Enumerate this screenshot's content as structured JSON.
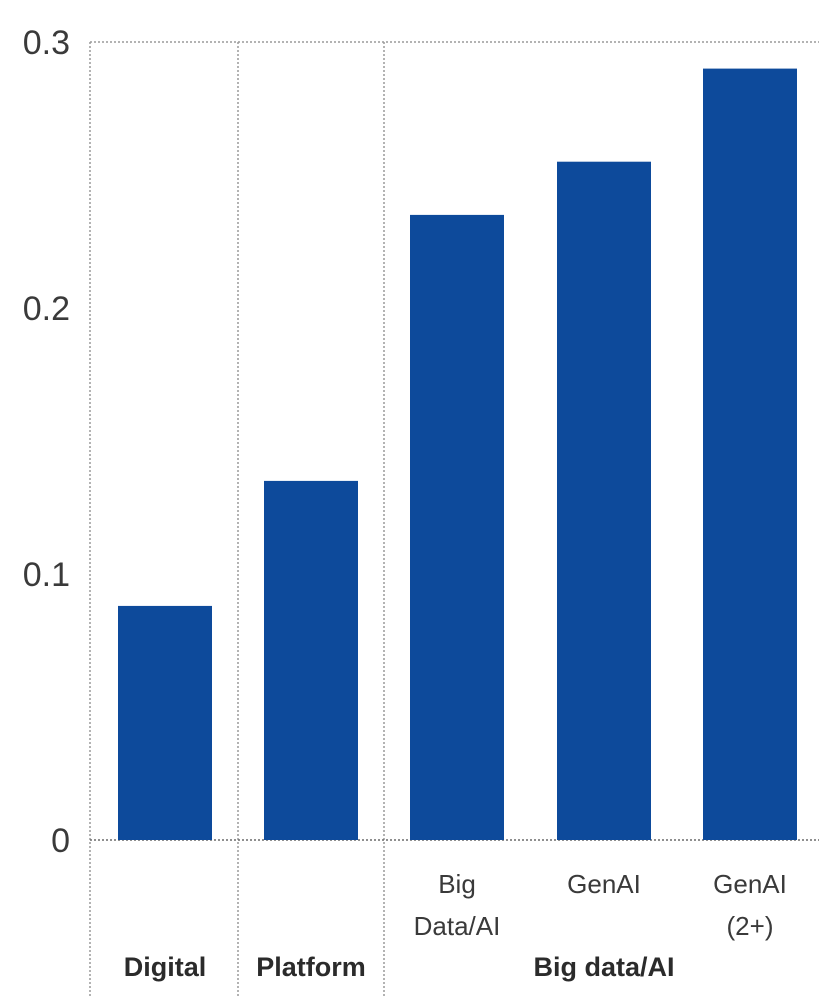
{
  "chart_data": {
    "type": "bar",
    "categories": [
      "Digital",
      "Platform",
      "Big Data/AI",
      "GenAI",
      "GenAI (2+)"
    ],
    "category_label_lines": [
      [],
      [],
      [
        "Big",
        "Data/AI"
      ],
      [
        "GenAI"
      ],
      [
        "GenAI",
        "(2+)"
      ]
    ],
    "values": [
      0.088,
      0.135,
      0.235,
      0.255,
      0.29
    ],
    "groups": [
      {
        "label": "Digital",
        "categories": [
          "Digital"
        ]
      },
      {
        "label": "Platform",
        "categories": [
          "Platform"
        ]
      },
      {
        "label": "Big data/AI",
        "categories": [
          "Big Data/AI",
          "GenAI",
          "GenAI (2+)"
        ]
      }
    ],
    "yticks": [
      {
        "value": 0,
        "label": "0"
      },
      {
        "value": 0.1,
        "label": "0.1"
      },
      {
        "value": 0.2,
        "label": "0.2"
      },
      {
        "value": 0.3,
        "label": "0.3"
      }
    ],
    "ylim": [
      0,
      0.3
    ],
    "title": "",
    "xlabel": "",
    "ylabel": "",
    "grid": false,
    "legend": "none",
    "bar_color": "#0d4a9b",
    "separator_color": "#9a9a9a"
  }
}
